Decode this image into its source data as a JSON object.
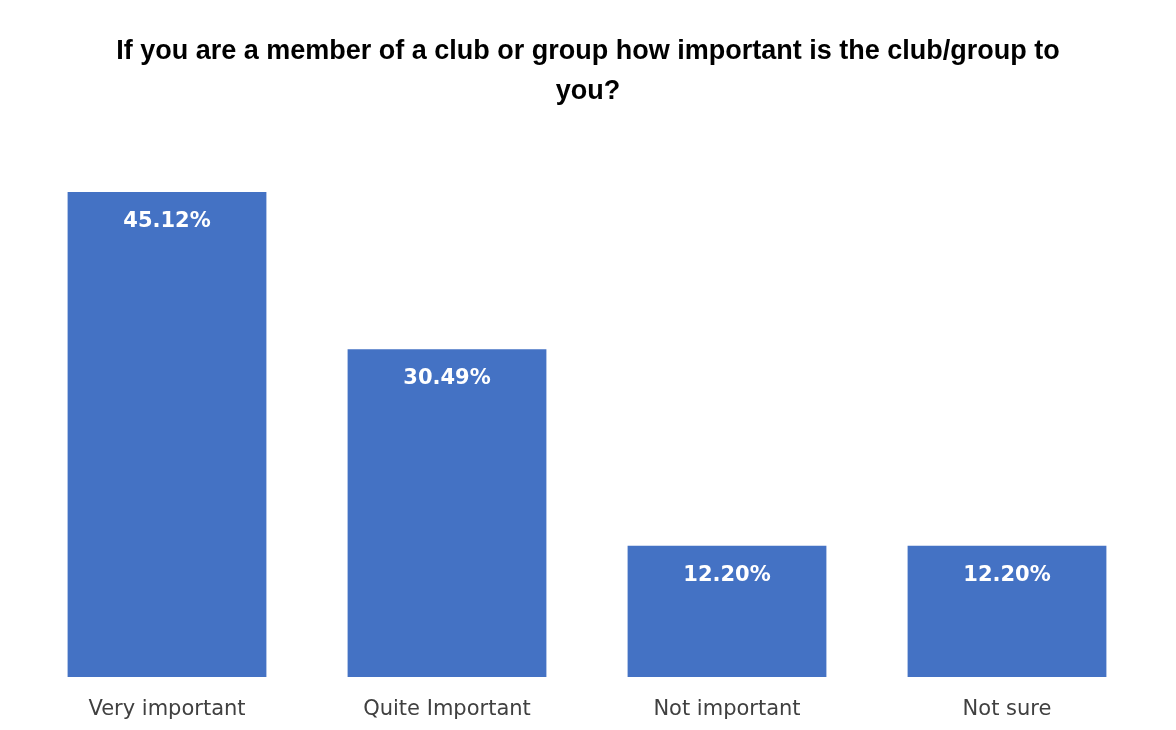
{
  "chart_data": {
    "type": "bar",
    "title": "If you are a member of a club or group how important is the club/group to you?",
    "categories": [
      "Very important",
      "Quite Important",
      "Not important",
      "Not sure"
    ],
    "values": [
      45.12,
      30.49,
      12.2,
      12.2
    ],
    "value_labels": [
      "45.12%",
      "30.49%",
      "12.20%",
      "12.20%"
    ],
    "color": "#4472c4"
  }
}
